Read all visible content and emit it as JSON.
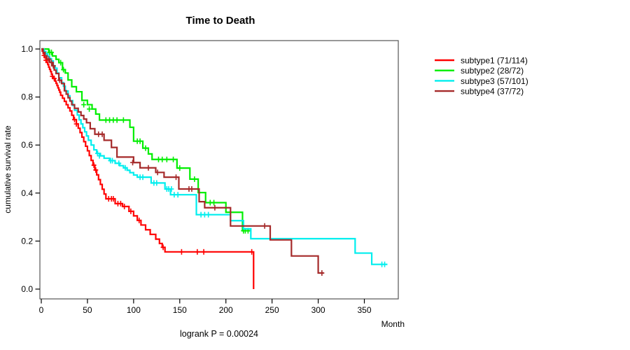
{
  "chart_data": {
    "type": "line",
    "subtype": "kaplan-meier-step",
    "title": "Time to Death",
    "xlabel": "Month",
    "ylabel": "cumulative survival rate",
    "annotation": "logrank P = 0.00024",
    "xlim": [
      0,
      387
    ],
    "ylim": [
      0.0,
      1.0
    ],
    "grid": false,
    "legend_position": "right-outside",
    "xticks": [
      {
        "value": 0,
        "label": "0"
      },
      {
        "value": 50,
        "label": "50"
      },
      {
        "value": 100,
        "label": "100"
      },
      {
        "value": 150,
        "label": "150"
      },
      {
        "value": 200,
        "label": "200"
      },
      {
        "value": 250,
        "label": "250"
      },
      {
        "value": 300,
        "label": "300"
      },
      {
        "value": 350,
        "label": "350"
      }
    ],
    "yticks": [
      {
        "value": 0.0,
        "label": "0.0"
      },
      {
        "value": 0.2,
        "label": "0.2"
      },
      {
        "value": 0.4,
        "label": "0.4"
      },
      {
        "value": 0.6,
        "label": "0.6"
      },
      {
        "value": 0.8,
        "label": "0.8"
      },
      {
        "value": 1.0,
        "label": "1.0"
      }
    ],
    "series": [
      {
        "name": "subtype1 (71/114)",
        "color": "#FF0000",
        "end_month": 230,
        "steps": [
          [
            0,
            1
          ],
          [
            1,
            0.991
          ],
          [
            2,
            0.982
          ],
          [
            3,
            0.973
          ],
          [
            4,
            0.964
          ],
          [
            5,
            0.953
          ],
          [
            6,
            0.944
          ],
          [
            7,
            0.935
          ],
          [
            8,
            0.924
          ],
          [
            9,
            0.915
          ],
          [
            10,
            0.906
          ],
          [
            11,
            0.895
          ],
          [
            12,
            0.886
          ],
          [
            13,
            0.877
          ],
          [
            15,
            0.866
          ],
          [
            16,
            0.857
          ],
          [
            17,
            0.848
          ],
          [
            18,
            0.838
          ],
          [
            19,
            0.829
          ],
          [
            20,
            0.82
          ],
          [
            21,
            0.807
          ],
          [
            23,
            0.795
          ],
          [
            25,
            0.782
          ],
          [
            27,
            0.768
          ],
          [
            29,
            0.755
          ],
          [
            31,
            0.742
          ],
          [
            33,
            0.724
          ],
          [
            35,
            0.706
          ],
          [
            38,
            0.688
          ],
          [
            40,
            0.67
          ],
          [
            42,
            0.652
          ],
          [
            44,
            0.633
          ],
          [
            46,
            0.614
          ],
          [
            48,
            0.595
          ],
          [
            50,
            0.576
          ],
          [
            52,
            0.556
          ],
          [
            54,
            0.536
          ],
          [
            56,
            0.516
          ],
          [
            58,
            0.496
          ],
          [
            60,
            0.476
          ],
          [
            62,
            0.456
          ],
          [
            64,
            0.436
          ],
          [
            66,
            0.416
          ],
          [
            68,
            0.396
          ],
          [
            70,
            0.376
          ],
          [
            80,
            0.356
          ],
          [
            88,
            0.344
          ],
          [
            95,
            0.324
          ],
          [
            100,
            0.305
          ],
          [
            104,
            0.286
          ],
          [
            108,
            0.267
          ],
          [
            113,
            0.247
          ],
          [
            118,
            0.228
          ],
          [
            124,
            0.208
          ],
          [
            128,
            0.19
          ],
          [
            131,
            0.174
          ],
          [
            134,
            0.155
          ],
          [
            230,
            0
          ]
        ],
        "censors": [
          [
            3,
            0.973
          ],
          [
            5,
            0.953
          ],
          [
            12,
            0.886
          ],
          [
            14,
            0.877
          ],
          [
            36,
            0.706
          ],
          [
            38,
            0.688
          ],
          [
            57,
            0.516
          ],
          [
            59,
            0.496
          ],
          [
            73,
            0.376
          ],
          [
            76,
            0.376
          ],
          [
            78,
            0.376
          ],
          [
            83,
            0.356
          ],
          [
            86,
            0.356
          ],
          [
            90,
            0.344
          ],
          [
            97,
            0.324
          ],
          [
            106,
            0.286
          ],
          [
            132,
            0.174
          ],
          [
            152,
            0.155
          ],
          [
            169,
            0.155
          ],
          [
            176,
            0.155
          ],
          [
            228,
            0.155
          ]
        ]
      },
      {
        "name": "subtype2 (28/72)",
        "color": "#00EE00",
        "end_month": 226,
        "steps": [
          [
            0,
            1
          ],
          [
            8,
            0.986
          ],
          [
            12,
            0.971
          ],
          [
            16,
            0.957
          ],
          [
            19,
            0.943
          ],
          [
            23,
            0.914
          ],
          [
            26,
            0.9
          ],
          [
            29,
            0.871
          ],
          [
            33,
            0.843
          ],
          [
            38,
            0.822
          ],
          [
            44,
            0.786
          ],
          [
            50,
            0.768
          ],
          [
            55,
            0.75
          ],
          [
            59,
            0.729
          ],
          [
            63,
            0.704
          ],
          [
            96,
            0.674
          ],
          [
            100,
            0.616
          ],
          [
            110,
            0.587
          ],
          [
            116,
            0.563
          ],
          [
            120,
            0.54
          ],
          [
            147,
            0.504
          ],
          [
            161,
            0.458
          ],
          [
            170,
            0.402
          ],
          [
            178,
            0.36
          ],
          [
            200,
            0.32
          ],
          [
            218,
            0.243
          ]
        ],
        "censors": [
          [
            9,
            0.986
          ],
          [
            11,
            0.986
          ],
          [
            21,
            0.943
          ],
          [
            24,
            0.914
          ],
          [
            46,
            0.768
          ],
          [
            52,
            0.75
          ],
          [
            70,
            0.704
          ],
          [
            74,
            0.704
          ],
          [
            78,
            0.704
          ],
          [
            82,
            0.704
          ],
          [
            89,
            0.704
          ],
          [
            104,
            0.616
          ],
          [
            107,
            0.616
          ],
          [
            113,
            0.587
          ],
          [
            127,
            0.54
          ],
          [
            131,
            0.54
          ],
          [
            136,
            0.54
          ],
          [
            143,
            0.54
          ],
          [
            150,
            0.504
          ],
          [
            166,
            0.458
          ],
          [
            183,
            0.36
          ],
          [
            187,
            0.36
          ],
          [
            219,
            0.243
          ],
          [
            221,
            0.243
          ],
          [
            224,
            0.243
          ]
        ]
      },
      {
        "name": "subtype3 (57/101)",
        "color": "#00EEEE",
        "end_month": 375,
        "steps": [
          [
            0,
            1
          ],
          [
            3,
            0.99
          ],
          [
            5,
            0.98
          ],
          [
            7,
            0.97
          ],
          [
            9,
            0.96
          ],
          [
            11,
            0.95
          ],
          [
            13,
            0.93
          ],
          [
            15,
            0.92
          ],
          [
            17,
            0.9
          ],
          [
            19,
            0.88
          ],
          [
            22,
            0.86
          ],
          [
            24,
            0.845
          ],
          [
            26,
            0.825
          ],
          [
            29,
            0.805
          ],
          [
            31,
            0.785
          ],
          [
            34,
            0.765
          ],
          [
            36,
            0.745
          ],
          [
            39,
            0.725
          ],
          [
            41,
            0.705
          ],
          [
            43,
            0.688
          ],
          [
            45,
            0.672
          ],
          [
            47,
            0.655
          ],
          [
            49,
            0.638
          ],
          [
            51,
            0.62
          ],
          [
            54,
            0.6
          ],
          [
            57,
            0.58
          ],
          [
            60,
            0.565
          ],
          [
            64,
            0.555
          ],
          [
            68,
            0.545
          ],
          [
            74,
            0.535
          ],
          [
            80,
            0.524
          ],
          [
            85,
            0.514
          ],
          [
            89,
            0.505
          ],
          [
            93,
            0.495
          ],
          [
            96,
            0.485
          ],
          [
            100,
            0.475
          ],
          [
            104,
            0.466
          ],
          [
            119,
            0.442
          ],
          [
            134,
            0.417
          ],
          [
            140,
            0.393
          ],
          [
            168,
            0.31
          ],
          [
            205,
            0.285
          ],
          [
            219,
            0.251
          ],
          [
            227,
            0.21
          ],
          [
            340,
            0.15
          ],
          [
            358,
            0.103
          ]
        ],
        "censors": [
          [
            61,
            0.565
          ],
          [
            63,
            0.555
          ],
          [
            75,
            0.535
          ],
          [
            77,
            0.535
          ],
          [
            84,
            0.524
          ],
          [
            91,
            0.505
          ],
          [
            107,
            0.466
          ],
          [
            110,
            0.466
          ],
          [
            122,
            0.442
          ],
          [
            125,
            0.442
          ],
          [
            136,
            0.417
          ],
          [
            138,
            0.417
          ],
          [
            141,
            0.417
          ],
          [
            144,
            0.393
          ],
          [
            148,
            0.393
          ],
          [
            173,
            0.31
          ],
          [
            177,
            0.31
          ],
          [
            181,
            0.31
          ],
          [
            369,
            0.103
          ],
          [
            372,
            0.103
          ]
        ]
      },
      {
        "name": "subtype4 (37/72)",
        "color": "#A52A2A",
        "end_month": 306,
        "steps": [
          [
            0,
            1
          ],
          [
            2,
            0.986
          ],
          [
            4,
            0.972
          ],
          [
            6,
            0.958
          ],
          [
            9,
            0.944
          ],
          [
            12,
            0.93
          ],
          [
            14,
            0.912
          ],
          [
            16,
            0.898
          ],
          [
            19,
            0.87
          ],
          [
            22,
            0.856
          ],
          [
            25,
            0.826
          ],
          [
            27,
            0.812
          ],
          [
            29,
            0.797
          ],
          [
            31,
            0.783
          ],
          [
            33,
            0.768
          ],
          [
            36,
            0.753
          ],
          [
            40,
            0.738
          ],
          [
            43,
            0.723
          ],
          [
            46,
            0.708
          ],
          [
            49,
            0.693
          ],
          [
            53,
            0.668
          ],
          [
            58,
            0.645
          ],
          [
            68,
            0.62
          ],
          [
            76,
            0.59
          ],
          [
            82,
            0.55
          ],
          [
            100,
            0.527
          ],
          [
            107,
            0.505
          ],
          [
            124,
            0.486
          ],
          [
            133,
            0.466
          ],
          [
            149,
            0.417
          ],
          [
            171,
            0.364
          ],
          [
            177,
            0.339
          ],
          [
            205,
            0.263
          ],
          [
            248,
            0.205
          ],
          [
            271,
            0.138
          ],
          [
            300,
            0.067
          ]
        ],
        "censors": [
          [
            8,
            0.958
          ],
          [
            11,
            0.944
          ],
          [
            13,
            0.93
          ],
          [
            20,
            0.87
          ],
          [
            62,
            0.645
          ],
          [
            66,
            0.645
          ],
          [
            99,
            0.527
          ],
          [
            116,
            0.505
          ],
          [
            126,
            0.486
          ],
          [
            146,
            0.466
          ],
          [
            160,
            0.417
          ],
          [
            163,
            0.417
          ],
          [
            188,
            0.339
          ],
          [
            242,
            0.263
          ],
          [
            304,
            0.067
          ]
        ]
      }
    ]
  }
}
